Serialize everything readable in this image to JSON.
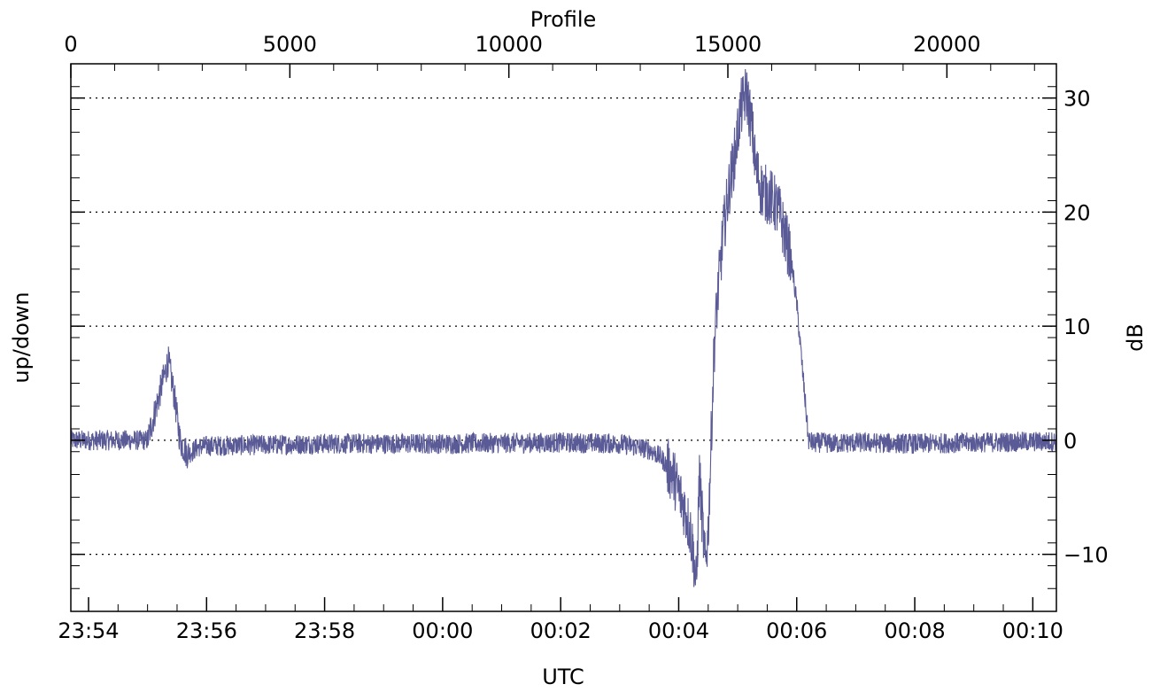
{
  "chart_data": {
    "type": "line",
    "title": "",
    "xlabel": "UTC",
    "ylabel": "up/down",
    "y2label": "dB",
    "x2label": "Profile",
    "x_range_minutes": [
      -6.3,
      10.4
    ],
    "x_ticks": [
      "23:54",
      "23:56",
      "23:58",
      "00:00",
      "00:02",
      "00:04",
      "00:06",
      "00:08",
      "00:10"
    ],
    "x2_range": [
      0,
      22500
    ],
    "x2_ticks": [
      "0",
      "5000",
      "10000",
      "15000",
      "20000"
    ],
    "y2_range": [
      -15,
      33
    ],
    "y2_ticks": [
      "30",
      "20",
      "10",
      "0",
      "−10"
    ],
    "y2_tick_values": [
      30,
      20,
      10,
      0,
      -10
    ],
    "grid": "horizontal dotted at y2 ticks",
    "series": [
      {
        "color": "#5a5a96",
        "x_minutes": [
          -6.3,
          -5.5,
          -5.0,
          -4.9,
          -4.75,
          -4.65,
          -4.55,
          -4.45,
          -4.35,
          -4.3,
          -4.15,
          -4.0,
          -2.0,
          0.0,
          2.0,
          3.0,
          3.5,
          3.7,
          3.9,
          4.0,
          4.1,
          4.2,
          4.25,
          4.3,
          4.35,
          4.45,
          4.5,
          4.55,
          4.6,
          4.65,
          4.75,
          4.85,
          4.95,
          5.05,
          5.15,
          5.25,
          5.3,
          5.35,
          5.4,
          5.5,
          5.6,
          5.7,
          5.8,
          5.9,
          6.0,
          6.1,
          6.2,
          6.3,
          6.35,
          6.45,
          6.6,
          7.0,
          8.0,
          9.0,
          10.4
        ],
        "values_db": [
          0,
          0,
          0,
          2,
          5,
          7,
          4,
          0,
          -1,
          -1.2,
          -0.6,
          -0.5,
          -0.3,
          -0.3,
          -0.2,
          -0.3,
          -0.8,
          -1.5,
          -3,
          -4.5,
          -6,
          -8,
          -10,
          -13,
          -3,
          -11,
          -8,
          0,
          8,
          12,
          18,
          22,
          25,
          29,
          30.5,
          27,
          24,
          23,
          22,
          21.5,
          21,
          20,
          18,
          16,
          12,
          6,
          0,
          -0.3,
          -0.2,
          -0.2,
          -0.3,
          -0.2,
          -0.3,
          -0.2,
          -0.1
        ]
      }
    ]
  }
}
